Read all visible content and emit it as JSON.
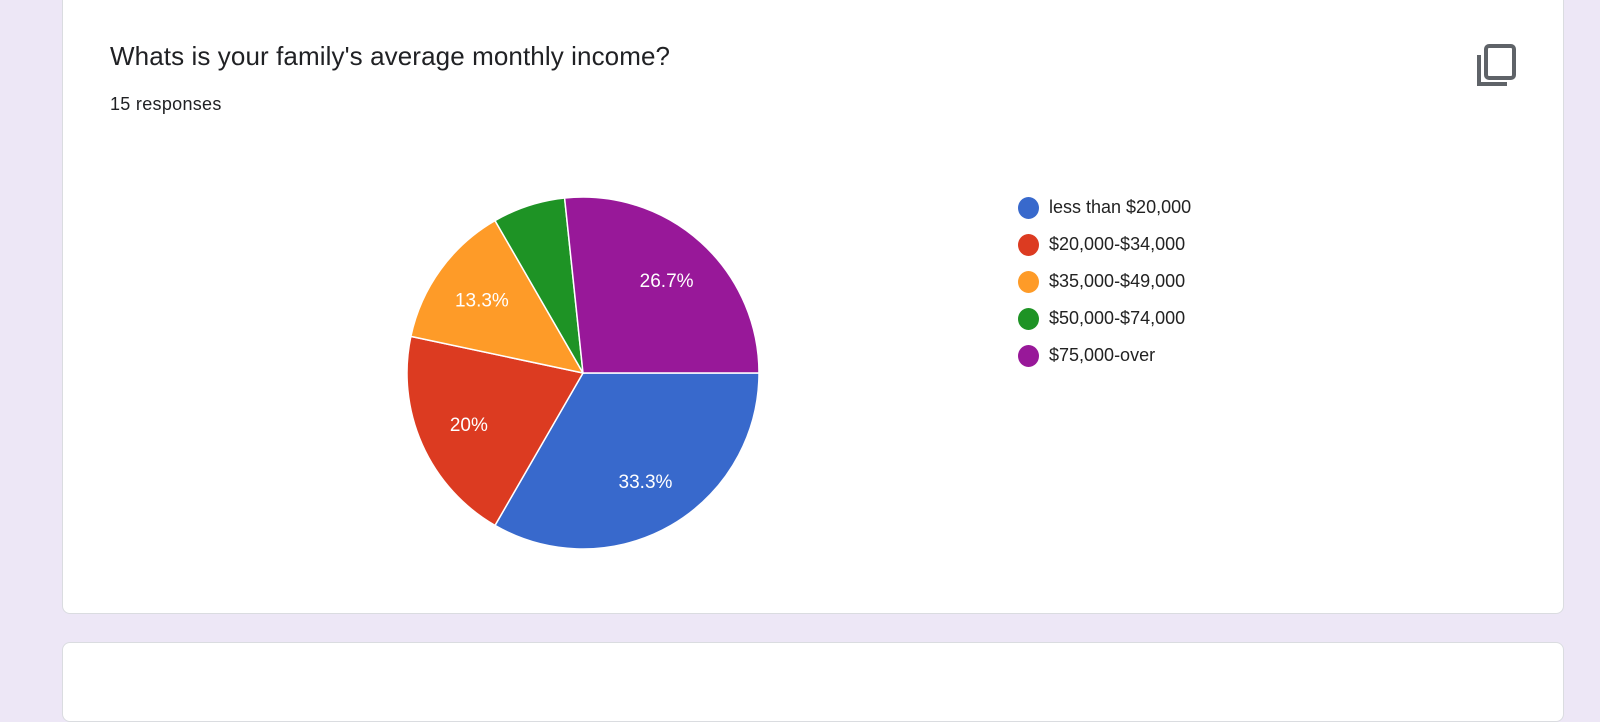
{
  "question": {
    "title": "Whats is your family's average monthly income?",
    "responses": "15 responses",
    "copy_icon": "copy-icon"
  },
  "chart_data": {
    "type": "pie",
    "categories": [
      "less than $20,000",
      "$20,000-$34,000",
      "$35,000-$49,000",
      "$50,000-$74,000",
      "$75,000-over"
    ],
    "values": [
      5,
      3,
      2,
      1,
      4
    ],
    "labels": [
      "33.3%",
      "20%",
      "13.3%",
      "",
      "26.7%"
    ],
    "colors": [
      "#3869cc",
      "#dc3b21",
      "#fe9b28",
      "#1e9325",
      "#981899"
    ],
    "legend": "right"
  }
}
